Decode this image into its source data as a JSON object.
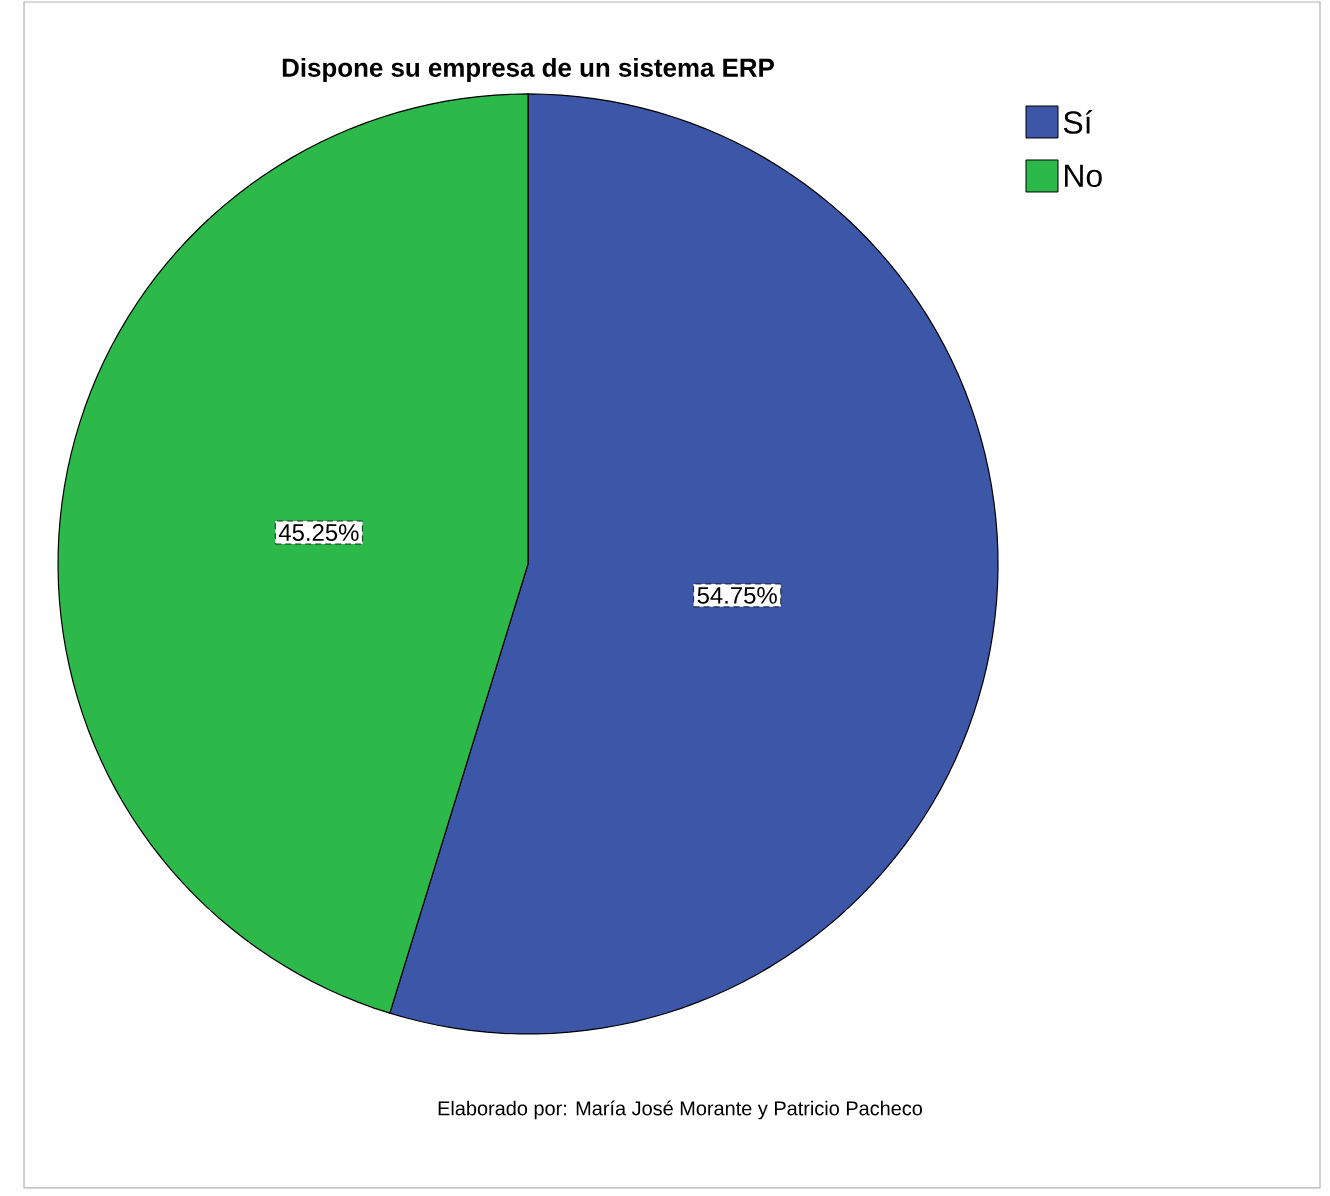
{
  "chart_data": {
    "type": "pie",
    "title": "Dispone su empresa de un sistema ERP",
    "categories": [
      "Sí",
      "No"
    ],
    "values": [
      54.75,
      45.25
    ],
    "colors": [
      "#3c56a8",
      "#2db84a"
    ],
    "value_labels": [
      "54.75%",
      "45.25%"
    ],
    "legend": "top right",
    "annotations": [
      "Elaborado por: María José Morante y Patricio Pacheco"
    ]
  }
}
